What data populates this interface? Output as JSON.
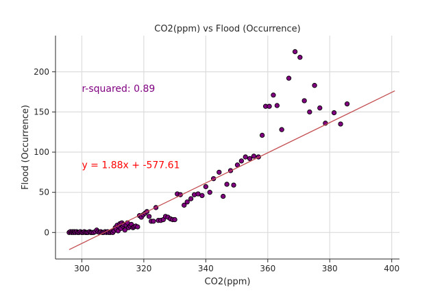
{
  "chart_data": {
    "type": "scatter",
    "title": "CO2(ppm) vs Flood (Occurrence)",
    "xlabel": "CO2(ppm)",
    "ylabel": "Flood (Occurrence)",
    "xlim": [
      291.5,
      402.5
    ],
    "ylim": [
      -33,
      245
    ],
    "xticks": [
      300,
      320,
      340,
      360,
      380,
      400
    ],
    "yticks": [
      0,
      50,
      100,
      150,
      200
    ],
    "grid": true,
    "point_color": "#800080",
    "point_edge_color": "#000000",
    "fit_line_color": "#c44e52",
    "annotations": [
      {
        "text": "r-squared: 0.89",
        "x": 300,
        "y": 175,
        "color": "#800080"
      },
      {
        "text": "y = 1.88x + -577.61",
        "x": 300,
        "y": 80,
        "color": "#ff0000"
      }
    ],
    "fit": {
      "slope": 1.88,
      "intercept": -577.61,
      "x_range": [
        295.9,
        401.0
      ]
    },
    "points": [
      [
        295.9,
        0
      ],
      [
        296.3,
        1
      ],
      [
        296.7,
        0
      ],
      [
        297.0,
        1
      ],
      [
        297.3,
        0
      ],
      [
        297.6,
        1
      ],
      [
        297.9,
        0
      ],
      [
        298.3,
        1
      ],
      [
        298.7,
        0
      ],
      [
        299.1,
        0
      ],
      [
        299.5,
        1
      ],
      [
        300.0,
        0
      ],
      [
        300.4,
        0
      ],
      [
        300.8,
        1
      ],
      [
        301.2,
        0
      ],
      [
        301.6,
        0
      ],
      [
        302.0,
        0
      ],
      [
        302.5,
        1
      ],
      [
        302.9,
        0
      ],
      [
        303.3,
        0
      ],
      [
        303.8,
        0
      ],
      [
        304.3,
        1
      ],
      [
        304.8,
        3
      ],
      [
        305.2,
        1
      ],
      [
        305.7,
        0
      ],
      [
        306.1,
        1
      ],
      [
        306.6,
        0
      ],
      [
        307.0,
        0
      ],
      [
        307.5,
        1
      ],
      [
        307.9,
        0
      ],
      [
        308.3,
        1
      ],
      [
        308.7,
        0
      ],
      [
        309.2,
        0
      ],
      [
        309.6,
        1
      ],
      [
        310.0,
        0
      ],
      [
        310.4,
        2
      ],
      [
        310.8,
        6
      ],
      [
        311.1,
        4
      ],
      [
        311.4,
        9
      ],
      [
        311.7,
        2
      ],
      [
        312.0,
        7
      ],
      [
        312.3,
        11
      ],
      [
        312.6,
        5
      ],
      [
        312.9,
        12
      ],
      [
        313.2,
        8
      ],
      [
        313.5,
        10
      ],
      [
        313.9,
        3
      ],
      [
        314.3,
        9
      ],
      [
        314.7,
        12
      ],
      [
        315.1,
        6
      ],
      [
        315.6,
        8
      ],
      [
        316.0,
        10
      ],
      [
        316.5,
        6
      ],
      [
        316.9,
        7
      ],
      [
        317.4,
        8
      ],
      [
        318.0,
        7
      ],
      [
        318.6,
        21
      ],
      [
        319.2,
        19
      ],
      [
        319.8,
        22
      ],
      [
        320.4,
        24
      ],
      [
        321.0,
        26
      ],
      [
        321.7,
        20
      ],
      [
        322.4,
        14
      ],
      [
        323.1,
        14
      ],
      [
        323.9,
        31
      ],
      [
        324.7,
        15
      ],
      [
        325.5,
        15
      ],
      [
        326.3,
        16
      ],
      [
        327.0,
        20
      ],
      [
        327.8,
        19
      ],
      [
        328.6,
        17
      ],
      [
        329.3,
        16
      ],
      [
        330.0,
        16
      ],
      [
        330.8,
        48
      ],
      [
        331.8,
        47
      ],
      [
        333.0,
        34
      ],
      [
        334.0,
        38
      ],
      [
        335.2,
        42
      ],
      [
        336.3,
        47
      ],
      [
        337.5,
        48
      ],
      [
        338.8,
        46
      ],
      [
        340.0,
        57
      ],
      [
        341.3,
        50
      ],
      [
        342.5,
        67
      ],
      [
        344.3,
        75
      ],
      [
        345.6,
        45
      ],
      [
        346.8,
        60
      ],
      [
        348.0,
        77
      ],
      [
        349.0,
        59
      ],
      [
        350.2,
        84
      ],
      [
        351.5,
        89
      ],
      [
        352.8,
        94
      ],
      [
        354.2,
        92
      ],
      [
        355.5,
        95
      ],
      [
        357.0,
        94
      ],
      [
        358.2,
        121
      ],
      [
        359.3,
        157
      ],
      [
        360.5,
        157
      ],
      [
        361.8,
        171
      ],
      [
        363.0,
        158
      ],
      [
        364.5,
        128
      ],
      [
        366.8,
        192
      ],
      [
        368.8,
        225
      ],
      [
        370.4,
        218
      ],
      [
        371.8,
        164
      ],
      [
        373.5,
        150
      ],
      [
        375.1,
        183
      ],
      [
        376.8,
        155
      ],
      [
        378.6,
        136
      ],
      [
        381.4,
        149
      ],
      [
        383.5,
        135
      ],
      [
        385.6,
        160
      ]
    ]
  }
}
